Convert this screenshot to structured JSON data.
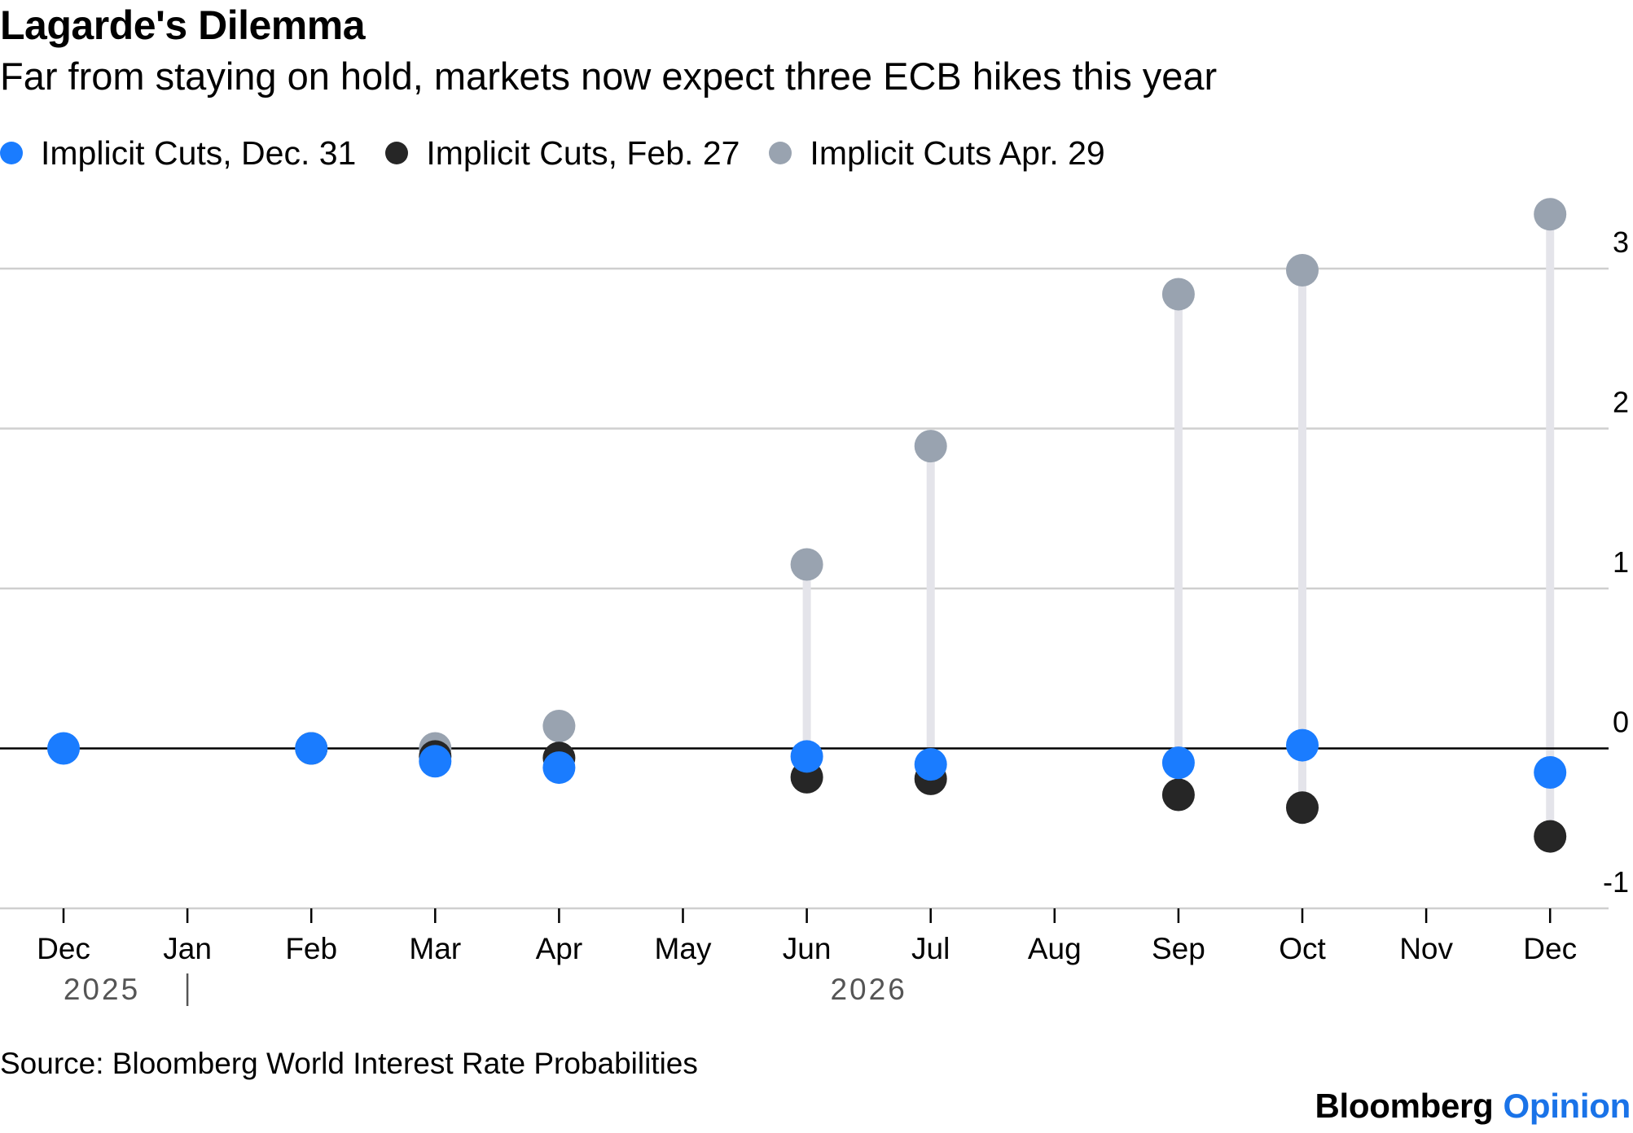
{
  "chart_data": {
    "type": "scatter",
    "title": "Lagarde's Dilemma",
    "subtitle": "Far from staying on hold, markets now expect three ECB hikes this year",
    "categories": [
      "Dec",
      "Jan",
      "Feb",
      "Mar",
      "Apr",
      "May",
      "Jun",
      "Jul",
      "Aug",
      "Sep",
      "Oct",
      "Nov",
      "Dec"
    ],
    "year_labels": [
      "2025",
      "2026"
    ],
    "ylim": [
      -1,
      3
    ],
    "yticks": [
      -1,
      0,
      1,
      2,
      3
    ],
    "ytick_labels": [
      "-1",
      "0",
      "1",
      "2",
      "3"
    ],
    "legend_position": "top-left",
    "grid": true,
    "series": [
      {
        "name": "Implicit Cuts, Dec. 31",
        "color": "#1a7cff",
        "points": [
          {
            "x": "Dec 2025",
            "y": 0.0
          },
          {
            "x": "Feb",
            "y": 0.0
          },
          {
            "x": "Mar",
            "y": -0.08
          },
          {
            "x": "Apr",
            "y": -0.12
          },
          {
            "x": "Jun",
            "y": -0.05
          },
          {
            "x": "Jul",
            "y": -0.1
          },
          {
            "x": "Sep",
            "y": -0.09
          },
          {
            "x": "Oct",
            "y": 0.02
          },
          {
            "x": "Dec 2026",
            "y": -0.15
          }
        ]
      },
      {
        "name": "Implicit Cuts, Feb. 27",
        "color": "#262626",
        "points": [
          {
            "x": "Feb",
            "y": 0.0
          },
          {
            "x": "Mar",
            "y": -0.05
          },
          {
            "x": "Apr",
            "y": -0.06
          },
          {
            "x": "Jun",
            "y": -0.18
          },
          {
            "x": "Jul",
            "y": -0.19
          },
          {
            "x": "Sep",
            "y": -0.29
          },
          {
            "x": "Oct",
            "y": -0.37
          },
          {
            "x": "Dec 2026",
            "y": -0.55
          }
        ]
      },
      {
        "name": "Implicit Cuts Apr. 29",
        "color": "#99a3b0",
        "points": [
          {
            "x": "Mar",
            "y": 0.0
          },
          {
            "x": "Apr",
            "y": 0.14
          },
          {
            "x": "Jun",
            "y": 1.15
          },
          {
            "x": "Jul",
            "y": 1.89
          },
          {
            "x": "Sep",
            "y": 2.84
          },
          {
            "x": "Oct",
            "y": 2.99
          },
          {
            "x": "Dec 2026",
            "y": 3.34
          }
        ]
      }
    ],
    "source": "Source: Bloomberg World Interest Rate Probabilities"
  },
  "brand": {
    "name": "Bloomberg",
    "section": "Opinion"
  },
  "colors": {
    "connector": "#e4e4ea",
    "grid": "#cfcfcf",
    "zero_line": "#000000"
  }
}
